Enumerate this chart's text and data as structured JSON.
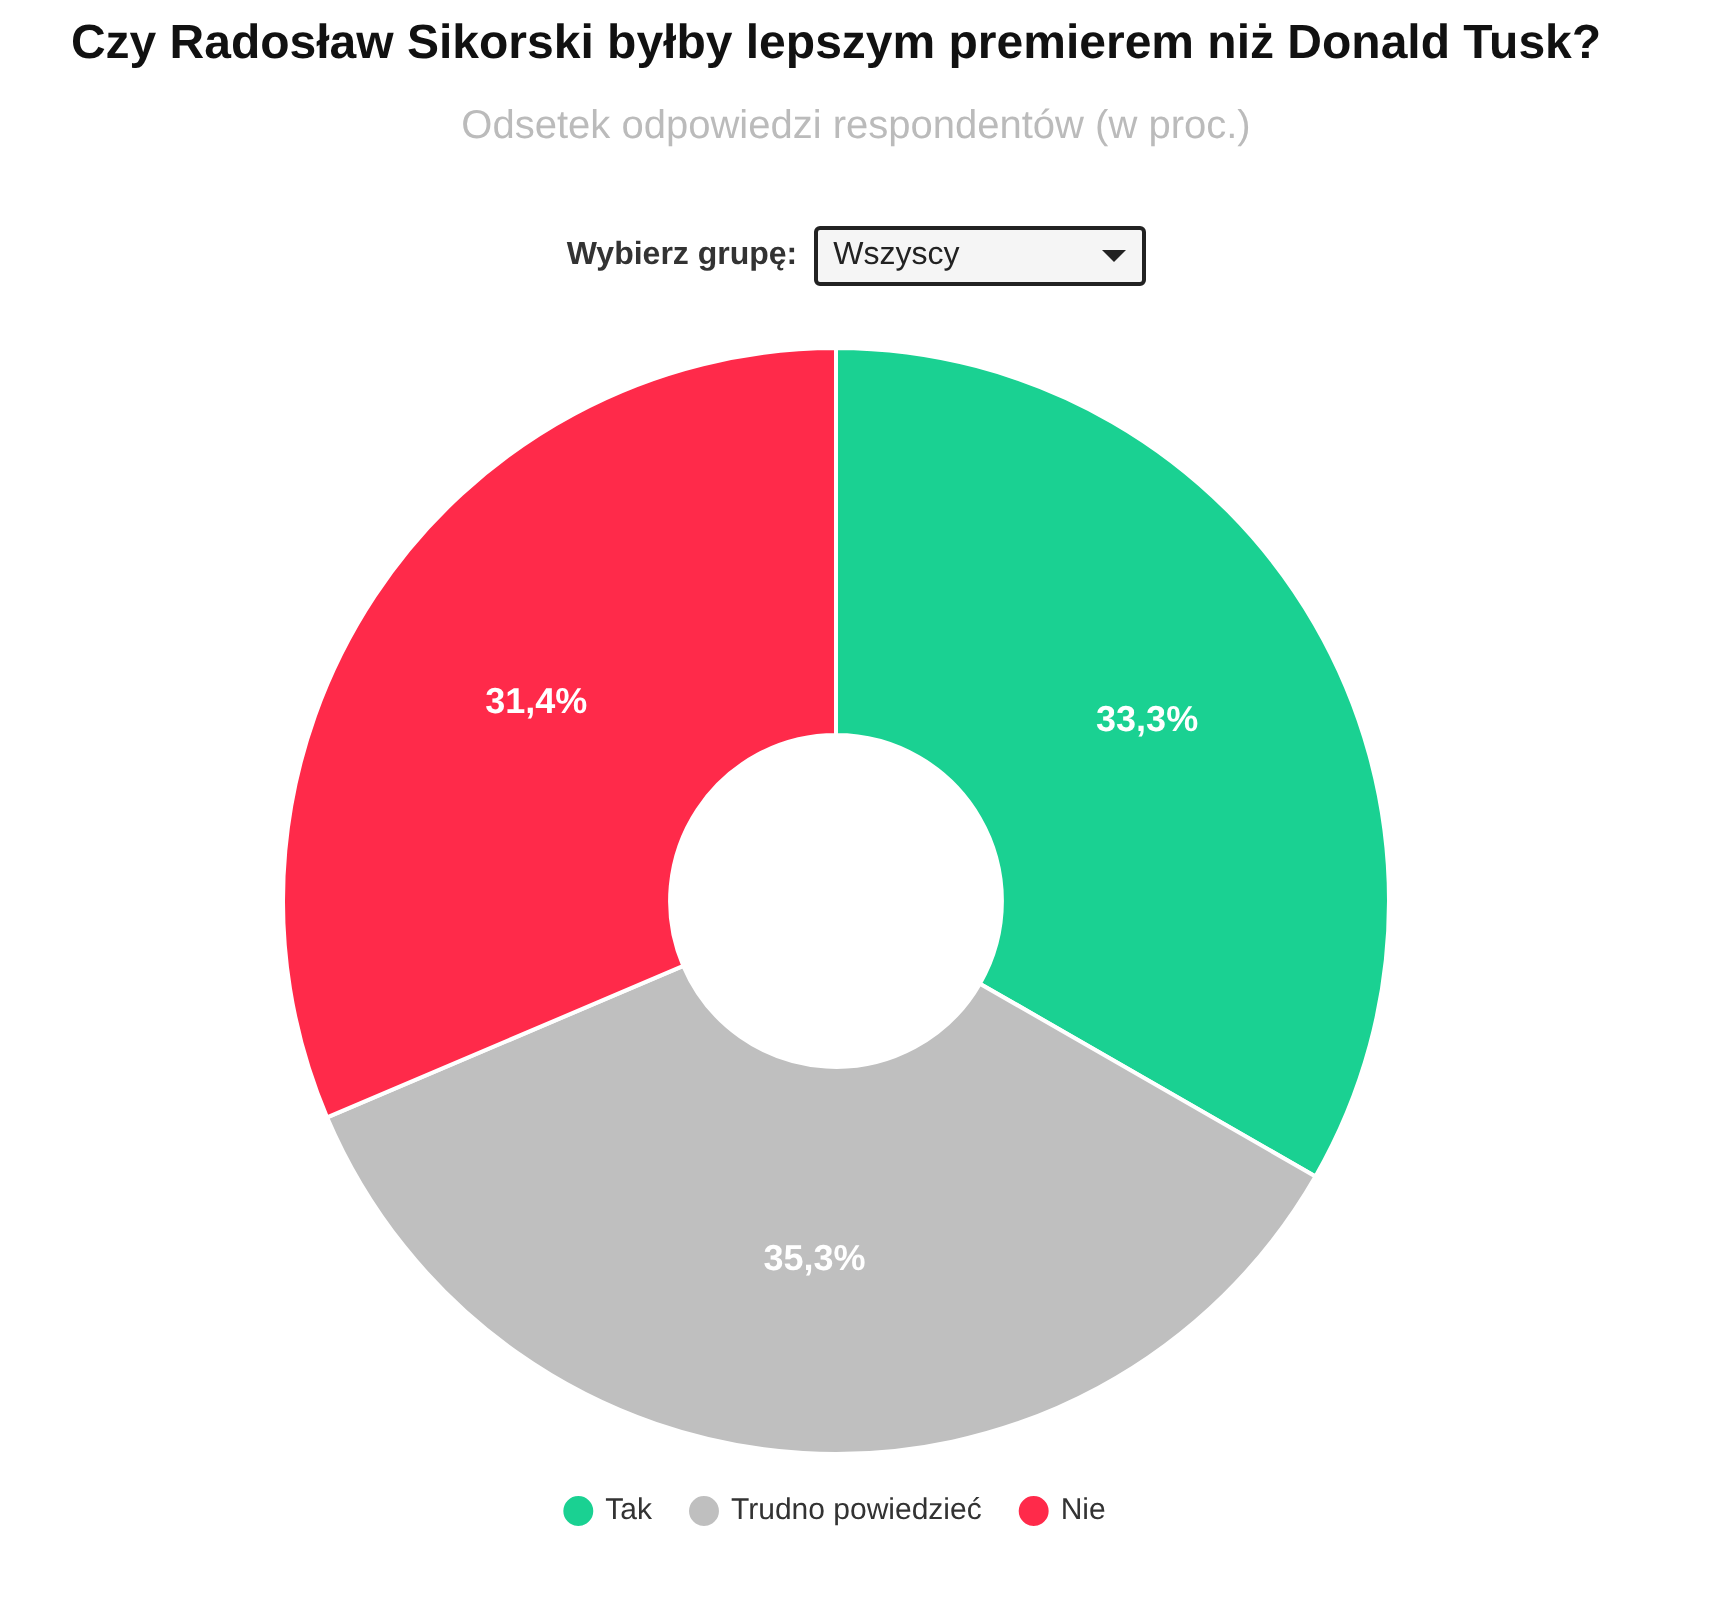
{
  "chart_data": {
    "type": "donut",
    "title": "Czy Radosław Sikorski byłby lepszym premierem niż Donald Tusk?",
    "subtitle": "Odsetek odpowiedzi respondentów (w proc.)",
    "annotations": [
      "Wybierz grupę:",
      "Wszyscy"
    ],
    "categories": [
      "Tak",
      "Trudno powiedzieć",
      "Nie"
    ],
    "values": [
      33.3,
      35.3,
      31.4
    ],
    "colors": [
      "#1ad192",
      "#bfbfbf",
      "#ff2a4a"
    ],
    "value_labels": [
      "33,3%",
      "35,3%",
      "31,4%"
    ],
    "legend": "bottom"
  }
}
